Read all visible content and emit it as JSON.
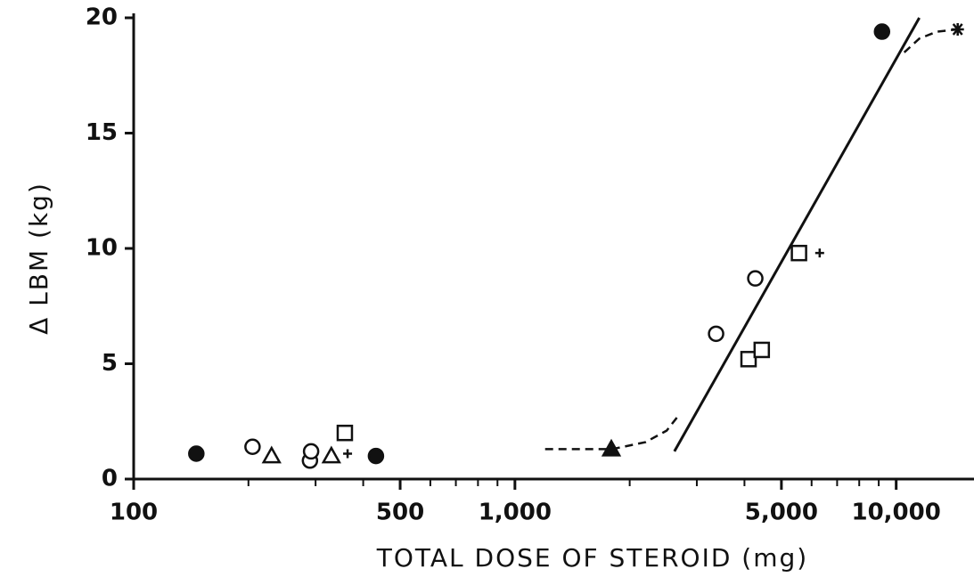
{
  "chart_data": {
    "type": "scatter",
    "xlabel": "TOTAL DOSE OF STEROID (mg)",
    "ylabel": "Δ LBM (kg)",
    "xscale": "log",
    "xlim": [
      100,
      16000
    ],
    "ylim": [
      0,
      20
    ],
    "xticks": [
      100,
      500,
      {
        "value": 1000,
        "label": "1,000"
      },
      {
        "value": 5000,
        "label": "5,000"
      },
      {
        "value": 10000,
        "label": "10,000"
      }
    ],
    "xminorticks": [
      200,
      300,
      400,
      600,
      700,
      800,
      900,
      2000,
      3000,
      4000,
      6000,
      7000,
      8000,
      9000
    ],
    "yticks": [
      0,
      5,
      10,
      15,
      20
    ],
    "color": "#111111",
    "points": [
      {
        "x": 146,
        "y": 1.1,
        "marker": "filled-circle"
      },
      {
        "x": 205,
        "y": 1.4,
        "marker": "circle"
      },
      {
        "x": 230,
        "y": 1.0,
        "marker": "triangle"
      },
      {
        "x": 290,
        "y": 0.8,
        "marker": "circle"
      },
      {
        "x": 292,
        "y": 1.2,
        "marker": "circle"
      },
      {
        "x": 330,
        "y": 1.0,
        "marker": "triangle"
      },
      {
        "x": 364,
        "y": 1.1,
        "marker": "plus"
      },
      {
        "x": 358,
        "y": 2.0,
        "marker": "square"
      },
      {
        "x": 432,
        "y": 1.0,
        "marker": "filled-circle"
      },
      {
        "x": 1790,
        "y": 1.3,
        "marker": "filled-triangle"
      },
      {
        "x": 3370,
        "y": 6.3,
        "marker": "circle"
      },
      {
        "x": 4270,
        "y": 8.7,
        "marker": "circle"
      },
      {
        "x": 4100,
        "y": 5.2,
        "marker": "square"
      },
      {
        "x": 4440,
        "y": 5.6,
        "marker": "square"
      },
      {
        "x": 5560,
        "y": 9.8,
        "marker": "square"
      },
      {
        "x": 6300,
        "y": 9.8,
        "marker": "plus"
      },
      {
        "x": 9180,
        "y": 19.4,
        "marker": "filled-circle"
      },
      {
        "x": 14500,
        "y": 19.5,
        "marker": "star"
      }
    ],
    "lines": [
      {
        "style": "solid",
        "x": [
          2620,
          11500
        ],
        "y": [
          1.2,
          20
        ]
      },
      {
        "style": "dashed",
        "x": [
          1200,
          1800,
          2200,
          2500,
          2700
        ],
        "y": [
          1.3,
          1.3,
          1.6,
          2.1,
          2.8
        ]
      },
      {
        "style": "dashed",
        "x": [
          10500,
          11500,
          12800,
          14500
        ],
        "y": [
          18.5,
          19.1,
          19.4,
          19.5
        ]
      }
    ]
  }
}
